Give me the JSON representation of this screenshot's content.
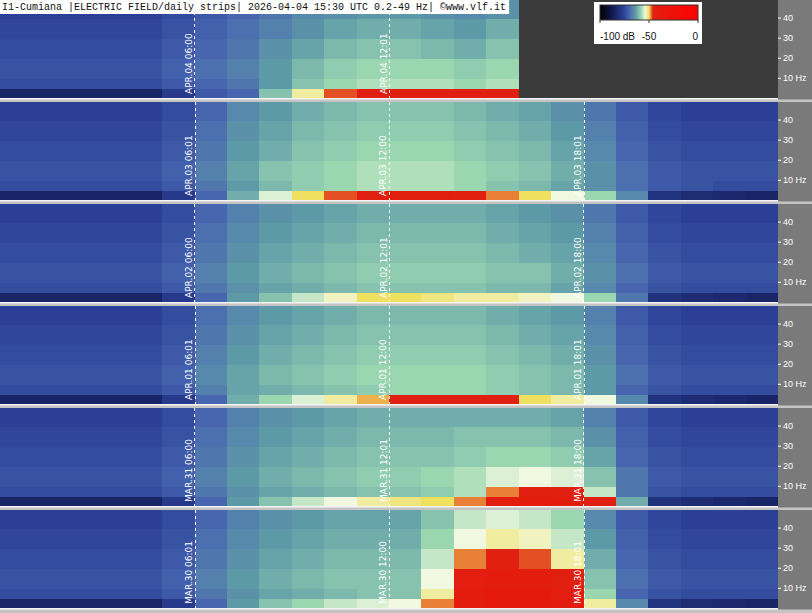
{
  "chart_data": {
    "type": "heatmap",
    "title": "I1-Cumiana |ELECTRIC FIELD/daily strips| 2026-04-04 15:30 UTC 0.2-49 Hz| ©www.vlf.it",
    "xlim": [
      0,
      24
    ],
    "ylim": [
      0.2,
      49
    ],
    "yticks": [
      {
        "value": 10,
        "label": "10 Hz"
      },
      20,
      30,
      40
    ],
    "grid": false,
    "color_scale": {
      "range": [
        -100,
        0
      ],
      "ticks": [
        {
          "value": -100,
          "label": "-100 dB"
        },
        -50,
        0
      ]
    },
    "x_bins": [
      0,
      1,
      2,
      3,
      4,
      5,
      6,
      7,
      8,
      9,
      10,
      11,
      12,
      13,
      14,
      15,
      16,
      17,
      18,
      19,
      20,
      21,
      22,
      23,
      24
    ],
    "bands": [
      0.2,
      5,
      10,
      20,
      30,
      40,
      49
    ],
    "strips": [
      {
        "markers": [
          {
            "value": 6,
            "label": "APR.04 06:00"
          },
          {
            "value": 12.0167,
            "label": "APR.04 12:01"
          }
        ],
        "cells": [
          [
            -84,
            -84,
            -84,
            -84,
            -84,
            -78,
            -72,
            -70,
            -60,
            -52,
            -47,
            -45,
            -44,
            -44,
            -45,
            -44,
            null,
            null,
            null,
            null,
            null,
            null,
            null,
            null
          ],
          [
            -74,
            -74,
            -74,
            -74,
            -74,
            -72,
            -70,
            -68,
            -64,
            -60,
            -58,
            -57,
            -57,
            -57,
            -58,
            -57,
            null,
            null,
            null,
            null,
            null,
            null,
            null,
            null
          ],
          [
            -73,
            -73,
            -73,
            -73,
            -73,
            -71,
            -69,
            -67,
            -64,
            -61,
            -59,
            -58,
            -58,
            -58,
            -59,
            -58,
            null,
            null,
            null,
            null,
            null,
            null,
            null,
            null
          ],
          [
            -74,
            -74,
            -74,
            -74,
            -74,
            -72,
            -70,
            -68,
            -65,
            -63,
            -61,
            -60,
            -60,
            -61,
            -62,
            -60,
            null,
            null,
            null,
            null,
            null,
            null,
            null,
            null
          ],
          [
            -75,
            -75,
            -75,
            -75,
            -75,
            -73,
            -71,
            -69,
            -67,
            -65,
            -63,
            -62,
            -62,
            -63,
            -64,
            -62,
            null,
            null,
            null,
            null,
            null,
            null,
            null,
            null
          ],
          [
            -76,
            -76,
            -76,
            -76,
            -76,
            -74,
            -72,
            -70,
            -68,
            -66,
            -65,
            -64,
            -64,
            -65,
            -66,
            -65,
            null,
            null,
            null,
            null,
            null,
            null,
            null,
            null
          ]
        ]
      },
      {
        "markers": [
          {
            "value": 6.0167,
            "label": "APR.03 06:01"
          },
          {
            "value": 12,
            "label": "APR.03 12:00"
          },
          {
            "value": 18.0167,
            "label": "APR.03 18:01"
          }
        ],
        "cells": [
          [
            -84,
            -84,
            -84,
            -84,
            -84,
            -78,
            -70,
            -62,
            -55,
            -50,
            -47,
            -45,
            -44,
            -44,
            -46,
            -48,
            -50,
            -54,
            -58,
            -66,
            -80,
            -82,
            -83,
            -84
          ],
          [
            -74,
            -74,
            -74,
            -74,
            -74,
            -72,
            -68,
            -64,
            -61,
            -59,
            -58,
            -57,
            -57,
            -57,
            -58,
            -60,
            -61,
            -63,
            -65,
            -69,
            -72,
            -73,
            -74,
            -74
          ],
          [
            -73,
            -73,
            -73,
            -73,
            -73,
            -71,
            -67,
            -63,
            -60,
            -59,
            -58,
            -57,
            -57,
            -57,
            -58,
            -59,
            -60,
            -62,
            -65,
            -69,
            -72,
            -73,
            -73,
            -73
          ],
          [
            -74,
            -74,
            -74,
            -74,
            -74,
            -72,
            -68,
            -64,
            -62,
            -60,
            -59,
            -58,
            -58,
            -58,
            -59,
            -60,
            -61,
            -63,
            -66,
            -70,
            -73,
            -74,
            -74,
            -74
          ],
          [
            -75,
            -75,
            -75,
            -75,
            -75,
            -73,
            -69,
            -65,
            -63,
            -61,
            -60,
            -59,
            -59,
            -59,
            -60,
            -61,
            -62,
            -64,
            -67,
            -71,
            -74,
            -75,
            -75,
            -75
          ],
          [
            -76,
            -76,
            -76,
            -76,
            -76,
            -74,
            -70,
            -66,
            -64,
            -62,
            -61,
            -60,
            -60,
            -60,
            -61,
            -62,
            -63,
            -65,
            -68,
            -72,
            -75,
            -76,
            -76,
            -76
          ]
        ]
      },
      {
        "markers": [
          {
            "value": 6,
            "label": "APR.02 06:00"
          },
          {
            "value": 12.0167,
            "label": "APR.02 12:01"
          },
          {
            "value": 18,
            "label": "APR.02 18:00"
          }
        ],
        "cells": [
          [
            -84,
            -84,
            -84,
            -84,
            -84,
            -78,
            -70,
            -64,
            -60,
            -56,
            -53,
            -50,
            -50,
            -51,
            -52,
            -52,
            -53,
            -54,
            -58,
            -68,
            -80,
            -82,
            -83,
            -84
          ],
          [
            -74,
            -74,
            -74,
            -74,
            -74,
            -72,
            -68,
            -65,
            -63,
            -62,
            -61,
            -60,
            -60,
            -60,
            -60,
            -61,
            -61,
            -63,
            -66,
            -70,
            -73,
            -74,
            -74,
            -74
          ],
          [
            -73,
            -73,
            -73,
            -73,
            -73,
            -71,
            -67,
            -64,
            -62,
            -61,
            -60,
            -59,
            -59,
            -59,
            -59,
            -60,
            -60,
            -62,
            -65,
            -69,
            -72,
            -73,
            -73,
            -73
          ],
          [
            -74,
            -74,
            -74,
            -74,
            -74,
            -72,
            -68,
            -65,
            -63,
            -62,
            -61,
            -60,
            -60,
            -60,
            -60,
            -61,
            -62,
            -63,
            -66,
            -70,
            -73,
            -74,
            -74,
            -74
          ],
          [
            -75,
            -75,
            -75,
            -75,
            -75,
            -73,
            -69,
            -66,
            -64,
            -63,
            -62,
            -61,
            -61,
            -61,
            -61,
            -62,
            -63,
            -64,
            -67,
            -71,
            -74,
            -75,
            -75,
            -75
          ],
          [
            -76,
            -76,
            -76,
            -76,
            -76,
            -74,
            -70,
            -67,
            -65,
            -64,
            -63,
            -62,
            -62,
            -62,
            -62,
            -63,
            -64,
            -65,
            -68,
            -72,
            -75,
            -76,
            -76,
            -76
          ]
        ]
      },
      {
        "markers": [
          {
            "value": 6.0167,
            "label": "APR.01 06:01"
          },
          {
            "value": 12,
            "label": "APR.01 12:00"
          },
          {
            "value": 18.0167,
            "label": "APR.01 18:01"
          }
        ],
        "cells": [
          [
            -84,
            -84,
            -84,
            -84,
            -84,
            -78,
            -70,
            -62,
            -58,
            -55,
            -52,
            -49,
            -46,
            -45,
            -45,
            -46,
            -50,
            -52,
            -54,
            -66,
            -80,
            -82,
            -83,
            -84
          ],
          [
            -74,
            -74,
            -74,
            -74,
            -74,
            -72,
            -67,
            -63,
            -62,
            -61,
            -60,
            -59,
            -58,
            -58,
            -58,
            -59,
            -60,
            -61,
            -64,
            -70,
            -73,
            -74,
            -74,
            -74
          ],
          [
            -73,
            -73,
            -73,
            -73,
            -73,
            -71,
            -66,
            -63,
            -61,
            -60,
            -59,
            -58,
            -58,
            -58,
            -58,
            -59,
            -60,
            -61,
            -64,
            -69,
            -72,
            -73,
            -73,
            -73
          ],
          [
            -74,
            -74,
            -74,
            -74,
            -74,
            -72,
            -67,
            -64,
            -62,
            -61,
            -60,
            -59,
            -59,
            -59,
            -59,
            -60,
            -61,
            -62,
            -65,
            -70,
            -73,
            -74,
            -74,
            -74
          ],
          [
            -75,
            -75,
            -75,
            -75,
            -75,
            -73,
            -68,
            -65,
            -63,
            -62,
            -61,
            -60,
            -60,
            -60,
            -60,
            -61,
            -62,
            -63,
            -66,
            -71,
            -74,
            -75,
            -75,
            -75
          ],
          [
            -76,
            -76,
            -76,
            -76,
            -76,
            -74,
            -69,
            -66,
            -64,
            -63,
            -62,
            -61,
            -61,
            -61,
            -61,
            -62,
            -63,
            -64,
            -67,
            -72,
            -75,
            -76,
            -76,
            -76
          ]
        ]
      },
      {
        "markers": [
          {
            "value": 6,
            "label": "MAR.31 06:00"
          },
          {
            "value": 12.0167,
            "label": "MAR.31 12:01"
          },
          {
            "value": 18,
            "label": "MAR.31 18:00"
          }
        ],
        "cells": [
          [
            -84,
            -84,
            -84,
            -84,
            -84,
            -78,
            -70,
            -64,
            -60,
            -56,
            -54,
            -52,
            -51,
            -50,
            -48,
            -42,
            -40,
            -40,
            -46,
            -62,
            -80,
            -82,
            -83,
            -84
          ],
          [
            -74,
            -74,
            -74,
            -74,
            -74,
            -72,
            -68,
            -65,
            -63,
            -62,
            -61,
            -60,
            -60,
            -59,
            -57,
            -48,
            -45,
            -46,
            -56,
            -68,
            -73,
            -74,
            -74,
            -74
          ],
          [
            -73,
            -73,
            -73,
            -73,
            -73,
            -71,
            -67,
            -64,
            -62,
            -61,
            -60,
            -59,
            -59,
            -58,
            -57,
            -55,
            -54,
            -55,
            -60,
            -68,
            -72,
            -73,
            -73,
            -73
          ],
          [
            -74,
            -74,
            -74,
            -74,
            -74,
            -72,
            -68,
            -65,
            -63,
            -62,
            -61,
            -60,
            -60,
            -60,
            -59,
            -58,
            -58,
            -59,
            -63,
            -70,
            -73,
            -74,
            -74,
            -74
          ],
          [
            -75,
            -75,
            -75,
            -75,
            -75,
            -73,
            -69,
            -66,
            -64,
            -63,
            -62,
            -61,
            -61,
            -61,
            -60,
            -60,
            -60,
            -61,
            -65,
            -71,
            -74,
            -75,
            -75,
            -75
          ],
          [
            -76,
            -76,
            -76,
            -76,
            -76,
            -74,
            -70,
            -67,
            -65,
            -64,
            -63,
            -62,
            -62,
            -62,
            -62,
            -62,
            -62,
            -63,
            -67,
            -72,
            -75,
            -76,
            -76,
            -76
          ]
        ]
      },
      {
        "markers": [
          {
            "value": 6.0167,
            "label": "MAR.30 06:01"
          },
          {
            "value": 12,
            "label": "MAR.30 12:00"
          },
          {
            "value": 18.0167,
            "label": "MAR.30 18:01"
          }
        ],
        "cells": [
          [
            -84,
            -84,
            -84,
            -84,
            -84,
            -78,
            -70,
            -64,
            -60,
            -58,
            -56,
            -55,
            -54,
            -48,
            -40,
            -38,
            -38,
            -40,
            -52,
            -66,
            -80,
            -82,
            -83,
            -84
          ],
          [
            -74,
            -74,
            -74,
            -74,
            -74,
            -72,
            -68,
            -65,
            -63,
            -62,
            -61,
            -60,
            -60,
            -52,
            -40,
            -38,
            -38,
            -42,
            -58,
            -70,
            -73,
            -74,
            -74,
            -74
          ],
          [
            -73,
            -73,
            -73,
            -73,
            -73,
            -71,
            -67,
            -64,
            -62,
            -61,
            -60,
            -60,
            -60,
            -54,
            -42,
            -40,
            -41,
            -45,
            -60,
            -69,
            -72,
            -73,
            -73,
            -73
          ],
          [
            -74,
            -74,
            -74,
            -74,
            -74,
            -72,
            -68,
            -65,
            -63,
            -62,
            -61,
            -61,
            -61,
            -56,
            -48,
            -46,
            -47,
            -52,
            -62,
            -70,
            -73,
            -74,
            -74,
            -74
          ],
          [
            -75,
            -75,
            -75,
            -75,
            -75,
            -73,
            -69,
            -66,
            -64,
            -63,
            -62,
            -62,
            -62,
            -58,
            -54,
            -52,
            -53,
            -56,
            -64,
            -71,
            -74,
            -75,
            -75,
            -75
          ],
          [
            -76,
            -76,
            -76,
            -76,
            -76,
            -74,
            -70,
            -67,
            -65,
            -64,
            -63,
            -63,
            -63,
            -60,
            -56,
            -55,
            -56,
            -58,
            -66,
            -72,
            -75,
            -76,
            -76,
            -76
          ]
        ]
      }
    ]
  }
}
